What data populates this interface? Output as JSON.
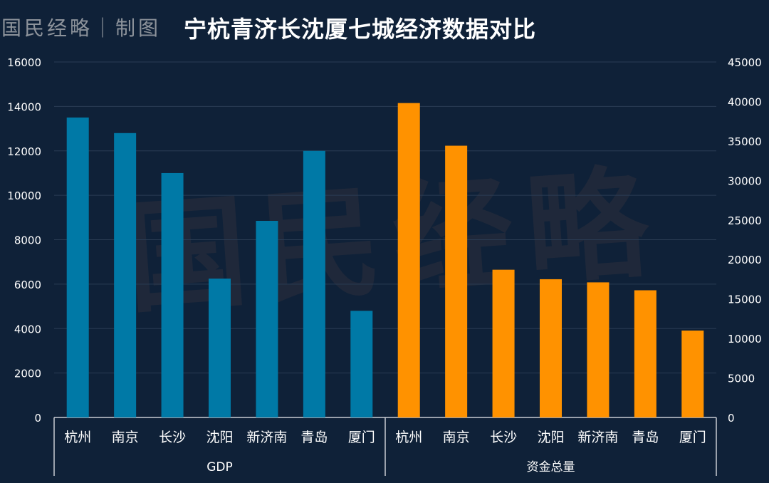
{
  "header": {
    "brand": "国民经略｜制图",
    "title": "宁杭青济长沈厦七城经济数据对比"
  },
  "watermark": "国民经略",
  "colors": {
    "background": "#0f2138",
    "gdp_bar": "#0079a6",
    "capital_bar": "#ff9200",
    "gridline": "#2a3c54",
    "axis_line": "#c8ccd2",
    "tick_text": "#ffffff"
  },
  "chart_data": {
    "type": "bar",
    "title": "宁杭青济长沈厦七城经济数据对比",
    "groups": [
      {
        "name": "GDP",
        "axis": "left",
        "categories": [
          "杭州",
          "南京",
          "长沙",
          "沈阳",
          "新济南",
          "青岛",
          "厦门"
        ],
        "values": [
          13500,
          12800,
          11000,
          6250,
          8850,
          12000,
          4800
        ]
      },
      {
        "name": "资金总量",
        "axis": "right",
        "categories": [
          "杭州",
          "南京",
          "长沙",
          "沈阳",
          "新济南",
          "青岛",
          "厦门"
        ],
        "values": [
          39800,
          34400,
          18700,
          17500,
          17100,
          16100,
          11000
        ]
      }
    ],
    "y_left": {
      "min": 0,
      "max": 16000,
      "ticks": [
        "0",
        "2000",
        "4000",
        "6000",
        "8000",
        "10000",
        "12000",
        "14000",
        "16000"
      ]
    },
    "y_right": {
      "min": 0,
      "max": 45000,
      "ticks": [
        "0",
        "5000",
        "10000",
        "15000",
        "20000",
        "25000",
        "30000",
        "35000",
        "40000",
        "45000"
      ]
    },
    "grid": true,
    "legend": "none"
  }
}
